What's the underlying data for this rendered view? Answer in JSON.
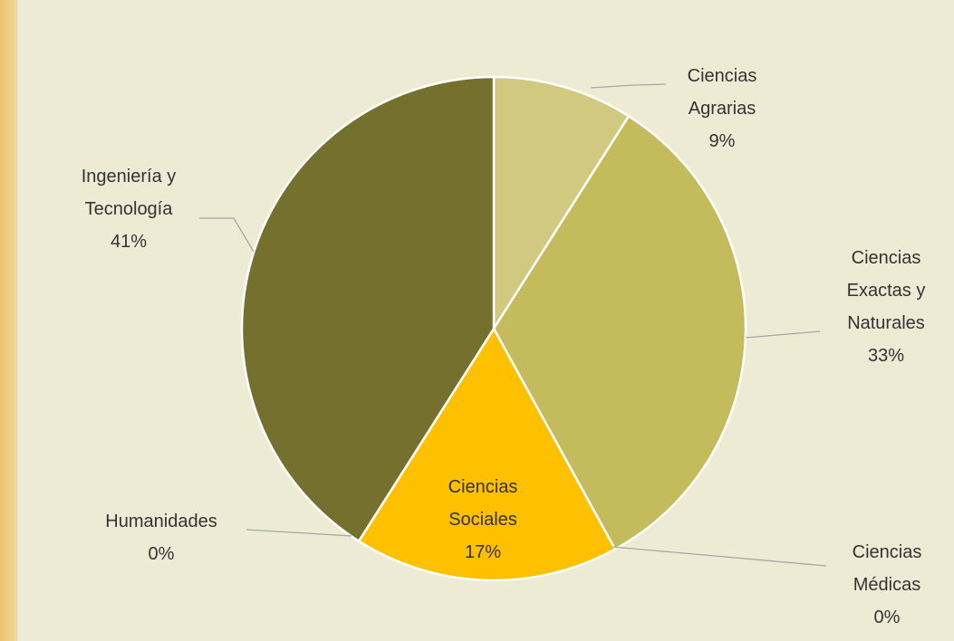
{
  "chart_data": {
    "type": "pie",
    "categories": [
      "Ciencias Agrarias",
      "Ciencias Exactas y Naturales",
      "Ciencias Médicas",
      "Ciencias Sociales",
      "Humanidades",
      "Ingeniería y Tecnología"
    ],
    "values": [
      9,
      33,
      0,
      17,
      0,
      41
    ],
    "value_labels": [
      "9%",
      "33%",
      "0%",
      "17%",
      "0%",
      "41%"
    ],
    "colors": [
      "#d0c97f",
      "#c3bb5c",
      "#8e8f8a",
      "#ffc000",
      "#d9d9d9",
      "#76702f"
    ]
  }
}
